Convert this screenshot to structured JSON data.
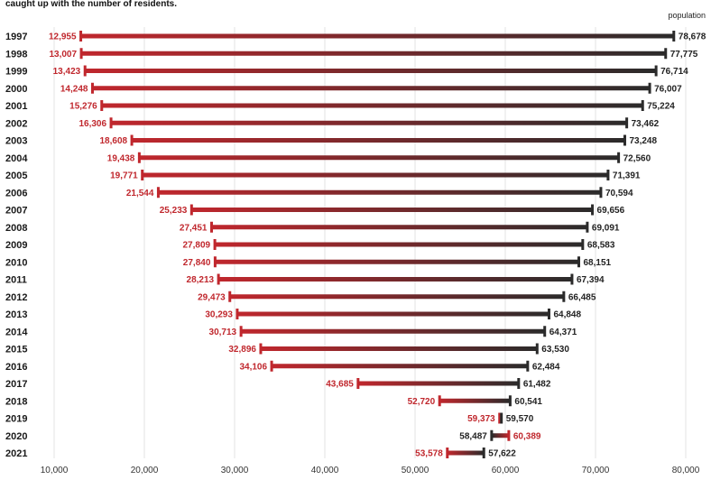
{
  "subtitle_fragment": "caught up with the number of residents.",
  "chart_data": {
    "type": "dumbbell",
    "unit_label": "population",
    "x_ticks": [
      "10,000",
      "20,000",
      "30,000",
      "40,000",
      "50,000",
      "60,000",
      "70,000",
      "80,000"
    ],
    "x_tick_values": [
      10000,
      20000,
      30000,
      40000,
      50000,
      60000,
      70000,
      80000
    ],
    "xlim": [
      10000,
      80000
    ],
    "grid": true,
    "colors": {
      "left": "#c0272d",
      "right": "#2b2b2b"
    },
    "rows": [
      {
        "year": "1997",
        "left": 12955,
        "right": 78678,
        "left_label": "12,955",
        "right_label": "78,678"
      },
      {
        "year": "1998",
        "left": 13007,
        "right": 77775,
        "left_label": "13,007",
        "right_label": "77,775"
      },
      {
        "year": "1999",
        "left": 13423,
        "right": 76714,
        "left_label": "13,423",
        "right_label": "76,714"
      },
      {
        "year": "2000",
        "left": 14248,
        "right": 76007,
        "left_label": "14,248",
        "right_label": "76,007"
      },
      {
        "year": "2001",
        "left": 15276,
        "right": 75224,
        "left_label": "15,276",
        "right_label": "75,224"
      },
      {
        "year": "2002",
        "left": 16306,
        "right": 73462,
        "left_label": "16,306",
        "right_label": "73,462"
      },
      {
        "year": "2003",
        "left": 18608,
        "right": 73248,
        "left_label": "18,608",
        "right_label": "73,248"
      },
      {
        "year": "2004",
        "left": 19438,
        "right": 72560,
        "left_label": "19,438",
        "right_label": "72,560"
      },
      {
        "year": "2005",
        "left": 19771,
        "right": 71391,
        "left_label": "19,771",
        "right_label": "71,391"
      },
      {
        "year": "2006",
        "left": 21544,
        "right": 70594,
        "left_label": "21,544",
        "right_label": "70,594"
      },
      {
        "year": "2007",
        "left": 25233,
        "right": 69656,
        "left_label": "25,233",
        "right_label": "69,656"
      },
      {
        "year": "2008",
        "left": 27451,
        "right": 69091,
        "left_label": "27,451",
        "right_label": "69,091"
      },
      {
        "year": "2009",
        "left": 27809,
        "right": 68583,
        "left_label": "27,809",
        "right_label": "68,583"
      },
      {
        "year": "2010",
        "left": 27840,
        "right": 68151,
        "left_label": "27,840",
        "right_label": "68,151"
      },
      {
        "year": "2011",
        "left": 28213,
        "right": 67394,
        "left_label": "28,213",
        "right_label": "67,394"
      },
      {
        "year": "2012",
        "left": 29473,
        "right": 66485,
        "left_label": "29,473",
        "right_label": "66,485"
      },
      {
        "year": "2013",
        "left": 30293,
        "right": 64848,
        "left_label": "30,293",
        "right_label": "64,848"
      },
      {
        "year": "2014",
        "left": 30713,
        "right": 64371,
        "left_label": "30,713",
        "right_label": "64,371"
      },
      {
        "year": "2015",
        "left": 32896,
        "right": 63530,
        "left_label": "32,896",
        "right_label": "63,530"
      },
      {
        "year": "2016",
        "left": 34106,
        "right": 62484,
        "left_label": "34,106",
        "right_label": "62,484"
      },
      {
        "year": "2017",
        "left": 43685,
        "right": 61482,
        "left_label": "43,685",
        "right_label": "61,482"
      },
      {
        "year": "2018",
        "left": 52720,
        "right": 60541,
        "left_label": "52,720",
        "right_label": "60,541"
      },
      {
        "year": "2019",
        "left": 59373,
        "right": 59570,
        "left_label": "59,373",
        "right_label": "59,570"
      },
      {
        "year": "2020",
        "left": 60389,
        "right": 58487,
        "left_label": "60,389",
        "right_label": "58,487"
      },
      {
        "year": "2021",
        "left": 53578,
        "right": 57622,
        "left_label": "53,578",
        "right_label": "57,622"
      }
    ]
  }
}
